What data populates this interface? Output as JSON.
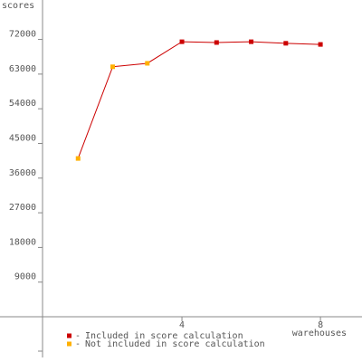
{
  "chart_data": {
    "type": "line",
    "y_label": "scores",
    "x_label": "warehouses",
    "x": [
      1,
      2,
      3,
      4,
      5,
      6,
      7,
      8
    ],
    "values": [
      41100,
      64900,
      65800,
      71400,
      71200,
      71400,
      71000,
      70700
    ],
    "line_color": "#cc0000",
    "marker_colors": [
      "#ffb000",
      "#ffb000",
      "#ffb000",
      "#cc0000",
      "#cc0000",
      "#cc0000",
      "#cc0000",
      "#cc0000"
    ],
    "legend": [
      {
        "name": "Included in score calculation",
        "color": "#cc0000"
      },
      {
        "name": "Not included in score calculation",
        "color": "#ffb000"
      }
    ],
    "xlim": [
      0,
      9.2
    ],
    "xticks": [
      4,
      8
    ],
    "ylim": [
      -10000,
      82000
    ],
    "yticks": [
      9000,
      18000,
      27000,
      36000,
      45000,
      54000,
      63000,
      72000
    ]
  }
}
